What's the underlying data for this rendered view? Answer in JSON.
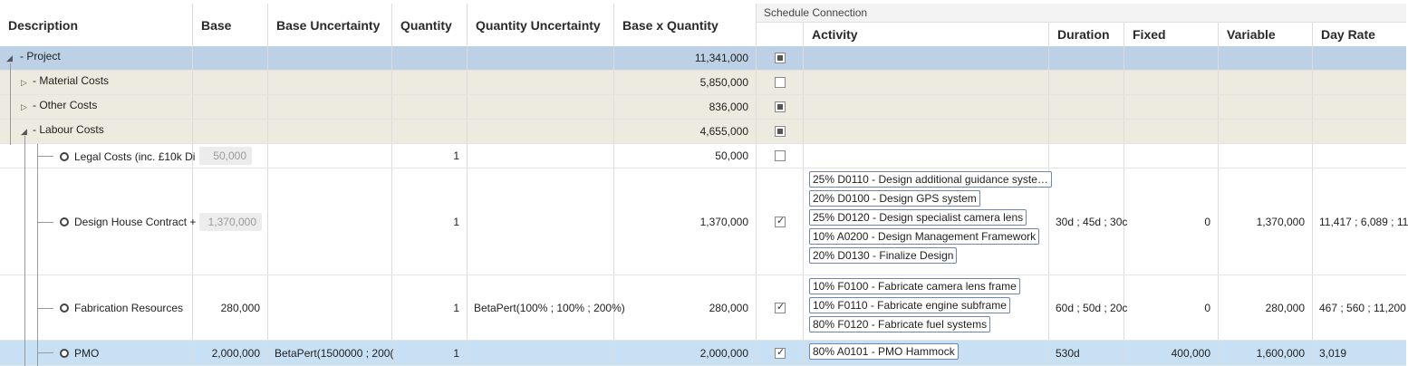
{
  "headers": {
    "description": "Description",
    "base": "Base",
    "base_uncertainty": "Base Uncertainty",
    "quantity": "Quantity",
    "quantity_uncertainty": "Quantity Uncertainty",
    "base_x_quantity": "Base x Quantity",
    "schedule_connection": "Schedule Connection",
    "activity": "Activity",
    "duration": "Duration",
    "fixed": "Fixed",
    "variable": "Variable",
    "day_rate": "Day Rate"
  },
  "rows": [
    {
      "description": "Project",
      "total": "11,341,000",
      "check": "partial",
      "expander": "expanded"
    },
    {
      "description": "Material Costs",
      "total": "5,850,000",
      "check": "unchecked",
      "expander": "collapsed"
    },
    {
      "description": "Other Costs",
      "total": "836,000",
      "check": "partial",
      "expander": "collapsed"
    },
    {
      "description": "Labour Costs",
      "total": "4,655,000",
      "check": "partial",
      "expander": "expanded"
    },
    {
      "description": "Legal Costs (inc. £10k Di",
      "base": "50,000",
      "base_disabled": true,
      "quantity": "1",
      "total": "50,000",
      "check": "unchecked"
    },
    {
      "description": "Design House Contract +",
      "base": "1,370,000",
      "base_disabled": true,
      "quantity": "1",
      "total": "1,370,000",
      "check": "checked",
      "activities": [
        "25% D0110 - Design additional guidance syste…",
        "20% D0100 - Design GPS system",
        "25% D0120 - Design specialist camera lens",
        "10% A0200 - Design Management Framework",
        "20% D0130 - Finalize Design"
      ],
      "duration": "30d ; 45d ; 30c",
      "fixed": "0",
      "variable": "1,370,000",
      "day_rate": "11,417 ; 6,089 ; 11"
    },
    {
      "description": "Fabrication Resources",
      "base": "280,000",
      "quantity": "1",
      "quantity_uncertainty": "BetaPert(100% ; 100% ; 200%)",
      "total": "280,000",
      "check": "checked",
      "activities": [
        "10% F0100 - Fabricate camera lens frame",
        "10% F0110 - Fabricate engine subframe",
        "80% F0120 - Fabricate fuel systems"
      ],
      "duration": "60d ; 50d ; 20c",
      "fixed": "0",
      "variable": "280,000",
      "day_rate": "467 ; 560 ; 11,200"
    },
    {
      "description": "PMO",
      "base": "2,000,000",
      "base_uncertainty": "BetaPert(1500000 ; 200(",
      "quantity": "1",
      "total": "2,000,000",
      "check": "checked",
      "activities": [
        "80% A0101 - PMO Hammock"
      ],
      "duration": "530d",
      "fixed": "400,000",
      "variable": "1,600,000",
      "day_rate": "3,019"
    }
  ]
}
